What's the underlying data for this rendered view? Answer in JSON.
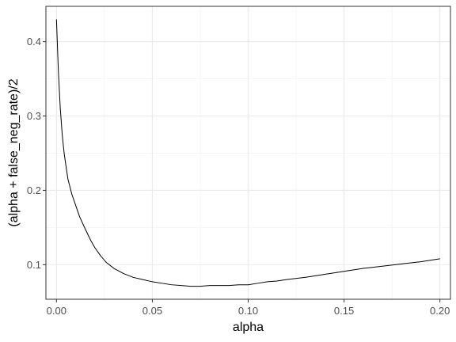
{
  "chart_data": {
    "type": "line",
    "title": "",
    "xlabel": "alpha",
    "ylabel": "(alpha + false_neg_rate)/2",
    "xlim": [
      -0.0055,
      0.2055
    ],
    "ylim": [
      0.0535,
      0.4475
    ],
    "x_ticks": [
      0.0,
      0.05,
      0.1,
      0.15,
      0.2
    ],
    "x_tick_labels": [
      "0.00",
      "0.05",
      "0.10",
      "0.15",
      "0.20"
    ],
    "y_ticks": [
      0.1,
      0.2,
      0.3,
      0.4
    ],
    "y_tick_labels": [
      "0.1",
      "0.2",
      "0.3",
      "0.4"
    ],
    "grid": true,
    "series": [
      {
        "color": "#000000",
        "x": [
          0.0,
          0.001,
          0.002,
          0.003,
          0.004,
          0.005,
          0.006,
          0.008,
          0.01,
          0.012,
          0.015,
          0.018,
          0.02,
          0.023,
          0.026,
          0.03,
          0.035,
          0.04,
          0.045,
          0.05,
          0.055,
          0.06,
          0.065,
          0.07,
          0.075,
          0.08,
          0.085,
          0.09,
          0.095,
          0.1,
          0.105,
          0.11,
          0.115,
          0.12,
          0.13,
          0.14,
          0.15,
          0.16,
          0.17,
          0.18,
          0.19,
          0.2
        ],
        "y": [
          0.43,
          0.36,
          0.31,
          0.275,
          0.25,
          0.232,
          0.215,
          0.195,
          0.18,
          0.165,
          0.148,
          0.132,
          0.123,
          0.112,
          0.103,
          0.095,
          0.088,
          0.083,
          0.08,
          0.077,
          0.075,
          0.073,
          0.072,
          0.071,
          0.071,
          0.072,
          0.072,
          0.072,
          0.073,
          0.073,
          0.075,
          0.077,
          0.078,
          0.08,
          0.083,
          0.087,
          0.091,
          0.095,
          0.098,
          0.101,
          0.104,
          0.108
        ]
      }
    ]
  }
}
